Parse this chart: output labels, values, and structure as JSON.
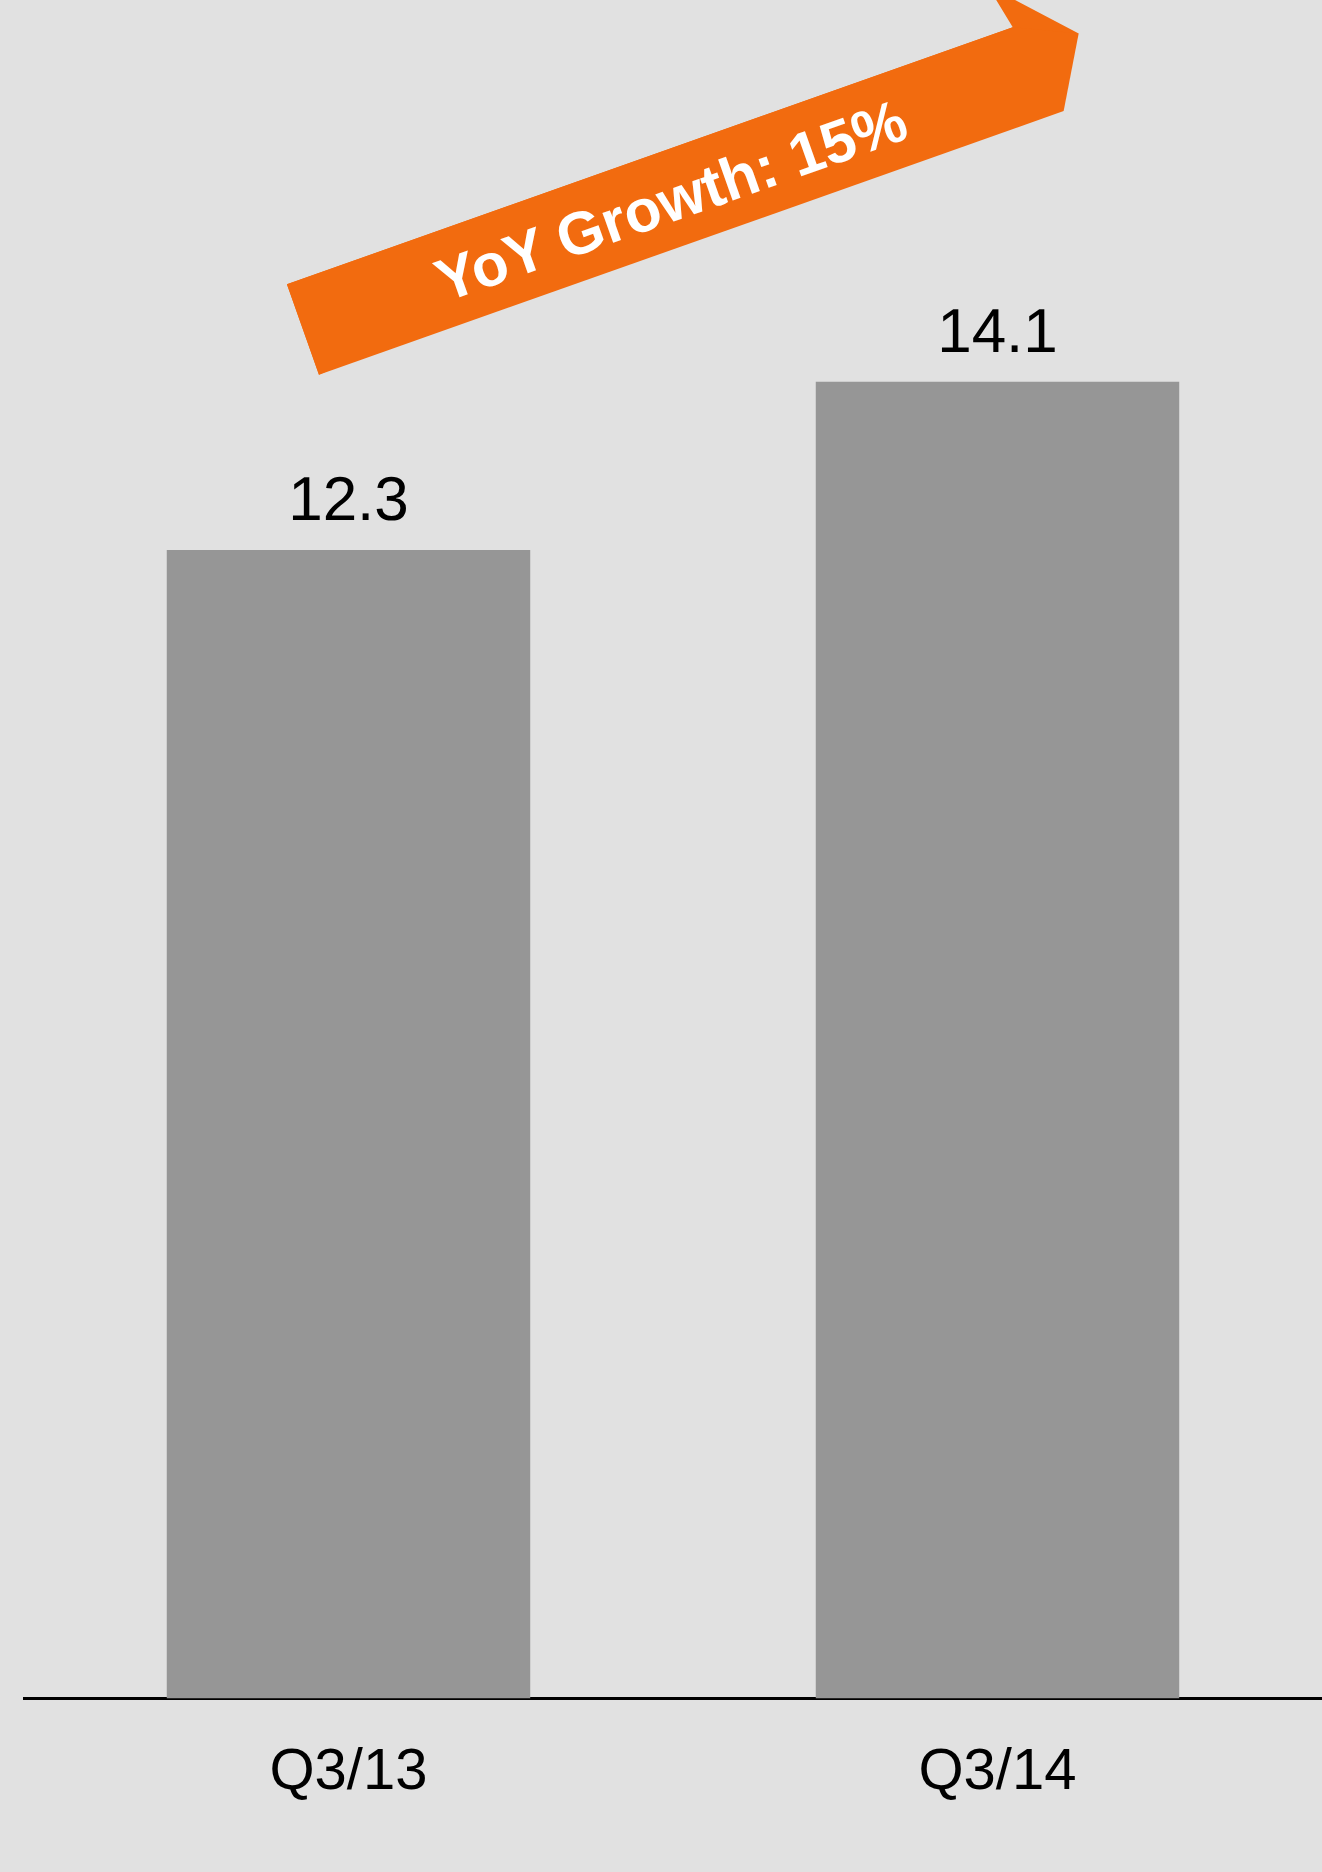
{
  "chart_data": {
    "type": "bar",
    "categories": [
      "Q3/13",
      "Q3/14"
    ],
    "values": [
      12.3,
      14.1
    ],
    "color": "#969696",
    "data_labels": true,
    "grid": false,
    "legend": false,
    "annotations": [
      "YoY Growth: 15%"
    ]
  }
}
